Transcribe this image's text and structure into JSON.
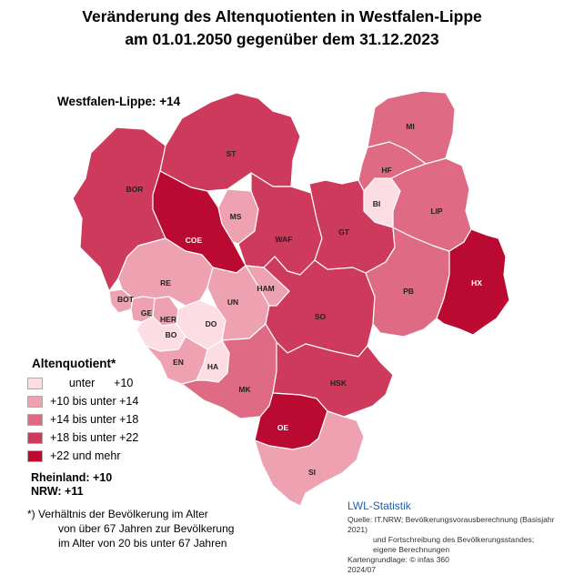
{
  "title": {
    "line1": "Veränderung des Altenquotienten in Westfalen-Lippe",
    "line2": "am 01.01.2050 gegenüber dem 31.12.2023"
  },
  "region_total": "Westfalen-Lippe: +14",
  "legend": {
    "title": "Altenquotient*",
    "classes": [
      {
        "label": "      unter      +10",
        "color": "#fcdde3"
      },
      {
        "label": "+10 bis unter +14",
        "color": "#eea1b1"
      },
      {
        "label": "+14 bis unter +18",
        "color": "#de6b83"
      },
      {
        "label": "+18 bis unter +22",
        "color": "#cd3a5c"
      },
      {
        "label": "+22 und mehr",
        "color": "#bb0a32"
      }
    ]
  },
  "comparisons": [
    "Rheinland: +10",
    "NRW: +11"
  ],
  "footnote": [
    "*) Verhältnis der Bevölkerung im Alter",
    "von über 67 Jahren zur Bevölkerung",
    "im Alter von 20 bis unter 67 Jahren"
  ],
  "source": {
    "brand": "LWL-Statistik",
    "lines": [
      "Quelle:  IT.NRW; Bevölkerungsvorausberechnung (Basisjahr 2021)",
      "und Fortschreibung des Bevölkerungsstandes;",
      "eigene Berechnungen",
      "Kartengrundlage: © infas 360",
      "2024/07"
    ]
  },
  "districts": [
    {
      "id": "BOR",
      "label": "BOR",
      "cls": 4
    },
    {
      "id": "ST",
      "label": "ST",
      "cls": 4
    },
    {
      "id": "COE",
      "label": "COE",
      "cls": 5
    },
    {
      "id": "MS",
      "label": "MS",
      "cls": 2
    },
    {
      "id": "WAF",
      "label": "WAF",
      "cls": 4
    },
    {
      "id": "RE",
      "label": "RE",
      "cls": 2
    },
    {
      "id": "BOT",
      "label": "BOT",
      "cls": 2
    },
    {
      "id": "GE",
      "label": "GE",
      "cls": 2
    },
    {
      "id": "HER",
      "label": "HER",
      "cls": 2
    },
    {
      "id": "BO",
      "label": "BO",
      "cls": 1
    },
    {
      "id": "DO",
      "label": "DO",
      "cls": 1
    },
    {
      "id": "UN",
      "label": "UN",
      "cls": 2
    },
    {
      "id": "HAM",
      "label": "HAM",
      "cls": 2
    },
    {
      "id": "EN",
      "label": "EN",
      "cls": 2
    },
    {
      "id": "HA",
      "label": "HA",
      "cls": 1
    },
    {
      "id": "MK",
      "label": "MK",
      "cls": 3
    },
    {
      "id": "SO",
      "label": "SO",
      "cls": 4
    },
    {
      "id": "HSK",
      "label": "HSK",
      "cls": 4
    },
    {
      "id": "OE",
      "label": "OE",
      "cls": 5
    },
    {
      "id": "SI",
      "label": "SI",
      "cls": 2
    },
    {
      "id": "GT",
      "label": "GT",
      "cls": 4
    },
    {
      "id": "BI",
      "label": "BI",
      "cls": 1
    },
    {
      "id": "PB",
      "label": "PB",
      "cls": 3
    },
    {
      "id": "LIP",
      "label": "LIP",
      "cls": 3
    },
    {
      "id": "HX",
      "label": "HX",
      "cls": 5
    },
    {
      "id": "MI",
      "label": "MI",
      "cls": 3
    },
    {
      "id": "HF",
      "label": "HF",
      "cls": 3
    }
  ]
}
